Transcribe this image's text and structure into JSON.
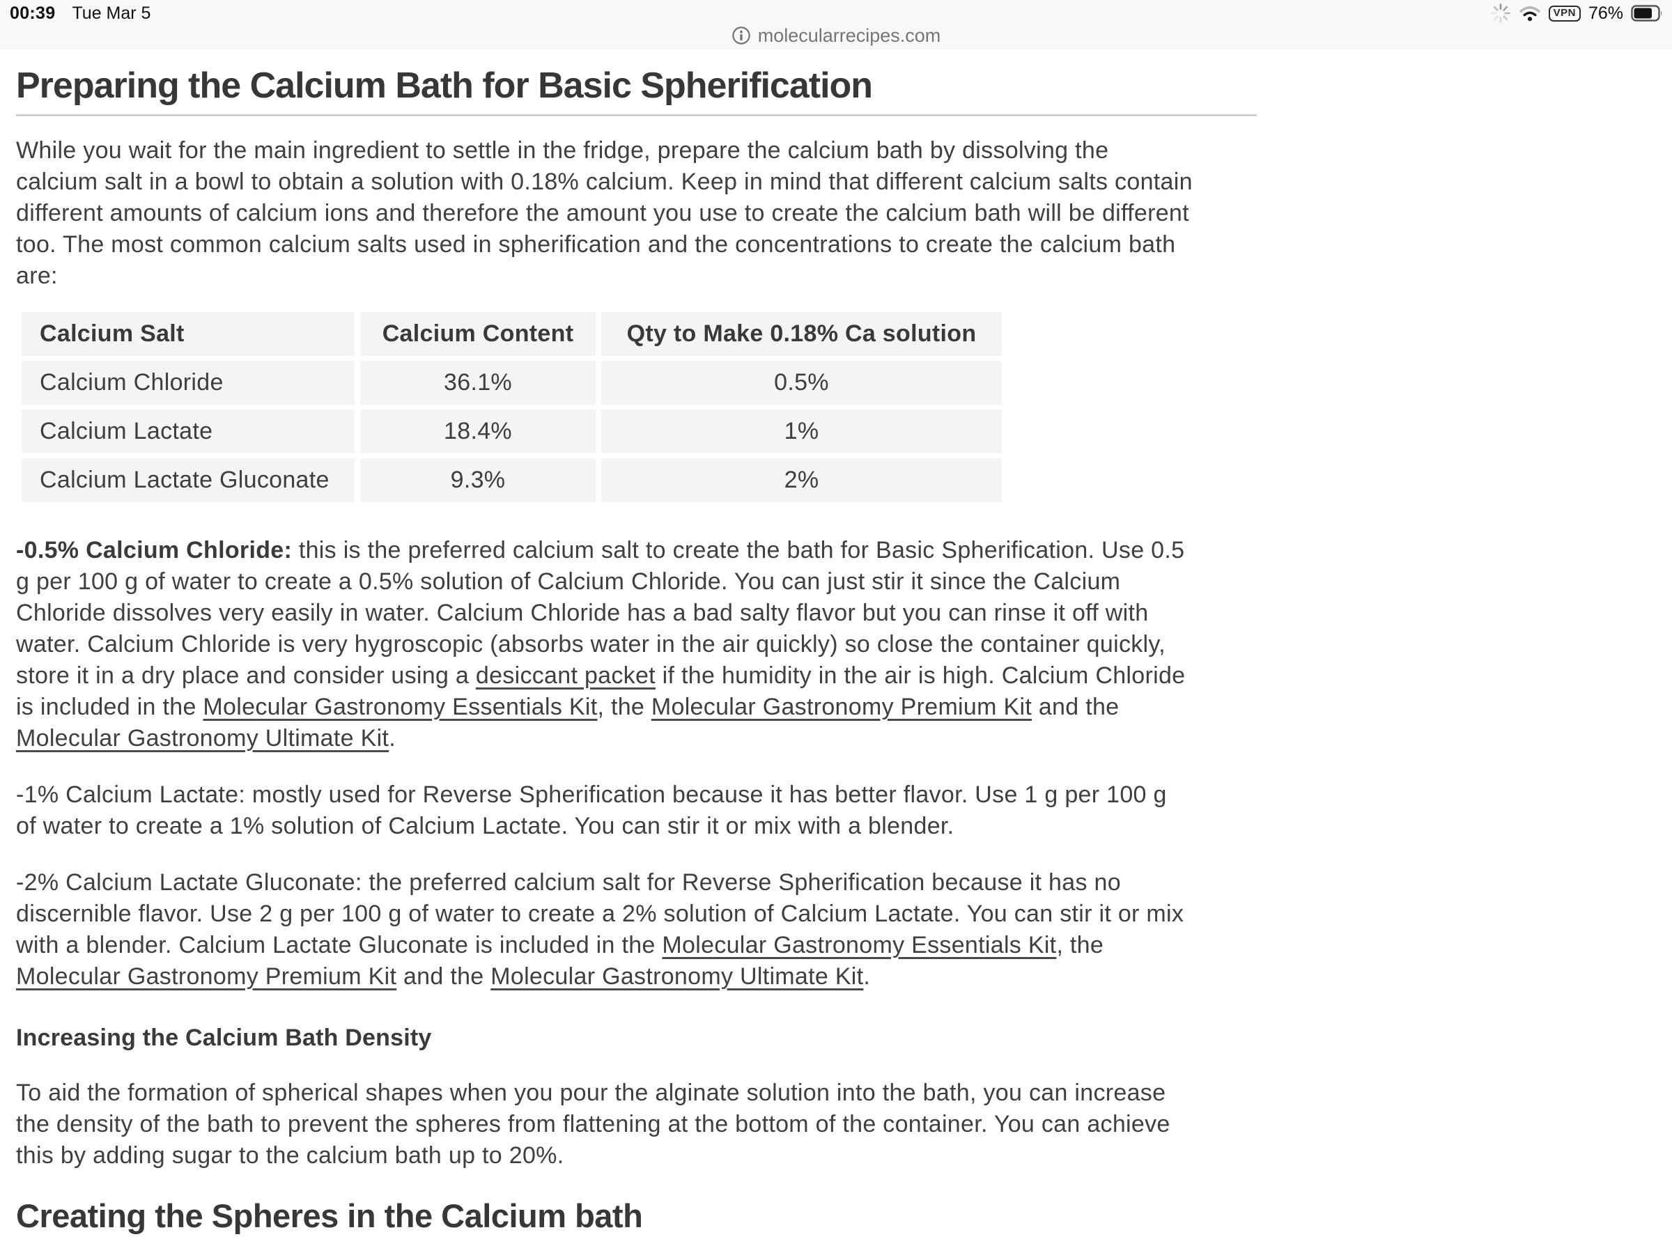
{
  "status_bar": {
    "time": "00:39",
    "date": "Tue Mar 5",
    "vpn_label": "VPN",
    "battery_percent": "76%"
  },
  "url_bar": {
    "site": "molecularrecipes.com"
  },
  "theme": {
    "topbar_bg": "#f8f8f8",
    "table_cell_bg": "#f4f4f4",
    "body_text": "#3f3f3f",
    "heading_text": "#373737",
    "rule_color": "#cfcfcf"
  },
  "article": {
    "title": "Preparing the Calcium Bath for Basic Spherification",
    "intro": "While you wait for the main ingredient to settle in the fridge, prepare the calcium bath by dissolving the calcium salt in a bowl to obtain a solution with 0.18% calcium. Keep in mind that different calcium salts contain different amounts of calcium ions and therefore the amount you use to create the calcium bath will be different too. The most common calcium salts used in spherification and the concentrations to create the calcium bath are:",
    "table": {
      "headers": [
        "Calcium Salt",
        "Calcium Content",
        "Qty to Make 0.18% Ca solution"
      ],
      "rows": [
        [
          "Calcium Chloride",
          "36.1%",
          "0.5%"
        ],
        [
          "Calcium Lactate",
          "18.4%",
          "1%"
        ],
        [
          "Calcium Lactate Gluconate",
          "9.3%",
          "2%"
        ]
      ]
    },
    "chloride_paragraph": [
      {
        "text": "-0.5% Calcium Chloride:",
        "bold": true
      },
      {
        "text": " this is the preferred calcium salt to create the bath for Basic Spherification. Use 0.5 g per 100 g of water to create a 0.5% solution of Calcium Chloride. You can just stir it since the Calcium Chloride dissolves very easily in water. Calcium Chloride has a bad salty flavor but you can rinse it off with water. Calcium Chloride is very hygroscopic (absorbs water in the air quickly) so close the container quickly, store it in a dry place and consider using a "
      },
      {
        "text": "desiccant packet",
        "link": true
      },
      {
        "text": " if the humidity in the air is high. Calcium Chloride is included in the "
      },
      {
        "text": "Molecular Gastronomy Essentials Kit",
        "link": true
      },
      {
        "text": ", the "
      },
      {
        "text": "Molecular Gastronomy Premium Kit",
        "link": true
      },
      {
        "text": " and the "
      },
      {
        "text": "Molecular Gastronomy Ultimate Kit",
        "link": true
      },
      {
        "text": "."
      }
    ],
    "lactate_paragraph": [
      {
        "text": "-1% Calcium Lactate: mostly used for Reverse Spherification because it has better flavor. Use 1 g per 100 g of water to create a 1% solution of Calcium Lactate. You can stir it or mix with a blender."
      }
    ],
    "gluconate_paragraph": [
      {
        "text": "-2% Calcium Lactate Gluconate: the preferred calcium salt for Reverse Spherification because it has no discernible flavor. Use 2 g per 100 g of water to create a 2% solution of Calcium Lactate. You can stir it or mix with a blender. Calcium Lactate Gluconate is included in the "
      },
      {
        "text": "Molecular Gastronomy Essentials Kit",
        "link": true
      },
      {
        "text": ", the "
      },
      {
        "text": "Molecular Gastronomy Premium Kit",
        "link": true
      },
      {
        "text": " and the "
      },
      {
        "text": "Molecular Gastronomy Ultimate Kit",
        "link": true
      },
      {
        "text": "."
      }
    ],
    "density_heading": "Increasing the Calcium Bath Density",
    "density_paragraph": [
      {
        "text": "To aid the formation of spherical shapes when you pour the alginate solution into the bath, you can increase the density of the bath to prevent the spheres from flattening at the bottom of the container. You can achieve this by adding sugar to the calcium bath up to 20%."
      }
    ],
    "next_section_title": "Creating the Spheres in the Calcium bath"
  }
}
